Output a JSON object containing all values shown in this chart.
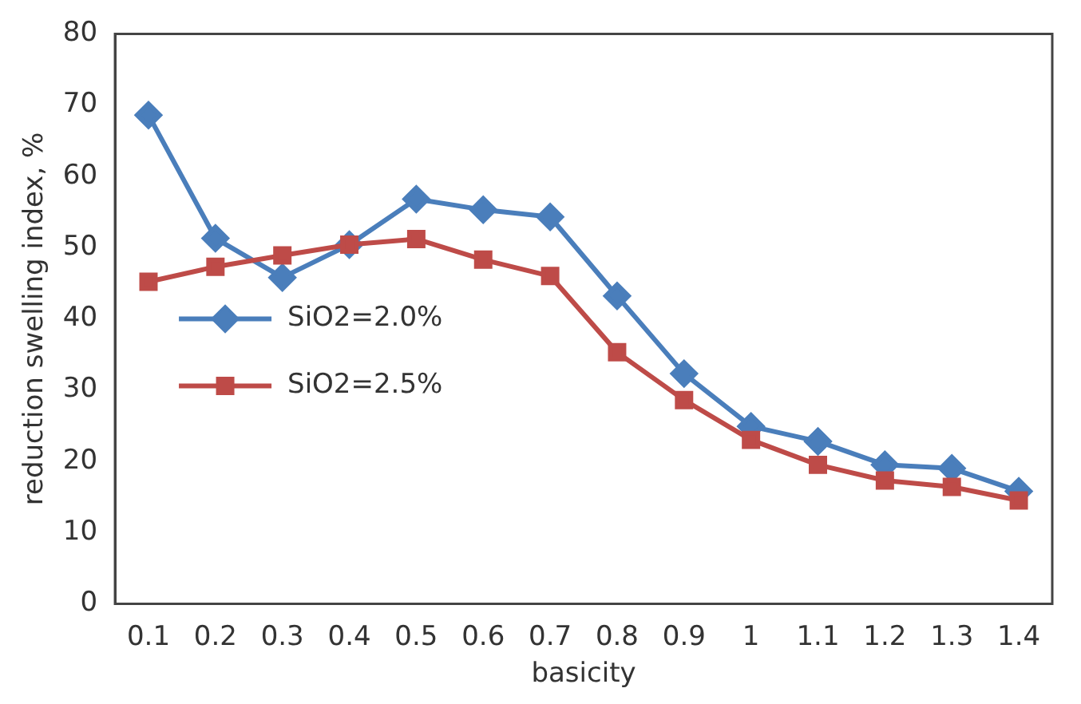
{
  "chart_data": {
    "type": "line",
    "xlabel": "basicity",
    "ylabel": "reduction swelling index, %",
    "categories": [
      "0.1",
      "0.2",
      "0.3",
      "0.4",
      "0.5",
      "0.6",
      "0.7",
      "0.8",
      "0.9",
      "1",
      "1.1",
      "1.2",
      "1.3",
      "1.4"
    ],
    "series": [
      {
        "name": "SiO2=2.0%",
        "color": "#4a7ebb",
        "marker": "diamond",
        "values": [
          68.6,
          51.3,
          45.8,
          50.4,
          56.8,
          55.3,
          54.3,
          43.2,
          32.3,
          24.9,
          22.8,
          19.5,
          19,
          15.8
        ]
      },
      {
        "name": "SiO2=2.5%",
        "color": "#be4b48",
        "marker": "square",
        "values": [
          45.2,
          47.3,
          48.9,
          50.4,
          51.2,
          48.3,
          46,
          35.3,
          28.6,
          23,
          19.5,
          17.3,
          16.4,
          14.5
        ]
      }
    ],
    "ylim": [
      0,
      80
    ],
    "yticks": [
      0,
      10,
      20,
      30,
      40,
      50,
      60,
      70,
      80
    ],
    "grid": false,
    "legend": "left",
    "line_style": "solid"
  }
}
